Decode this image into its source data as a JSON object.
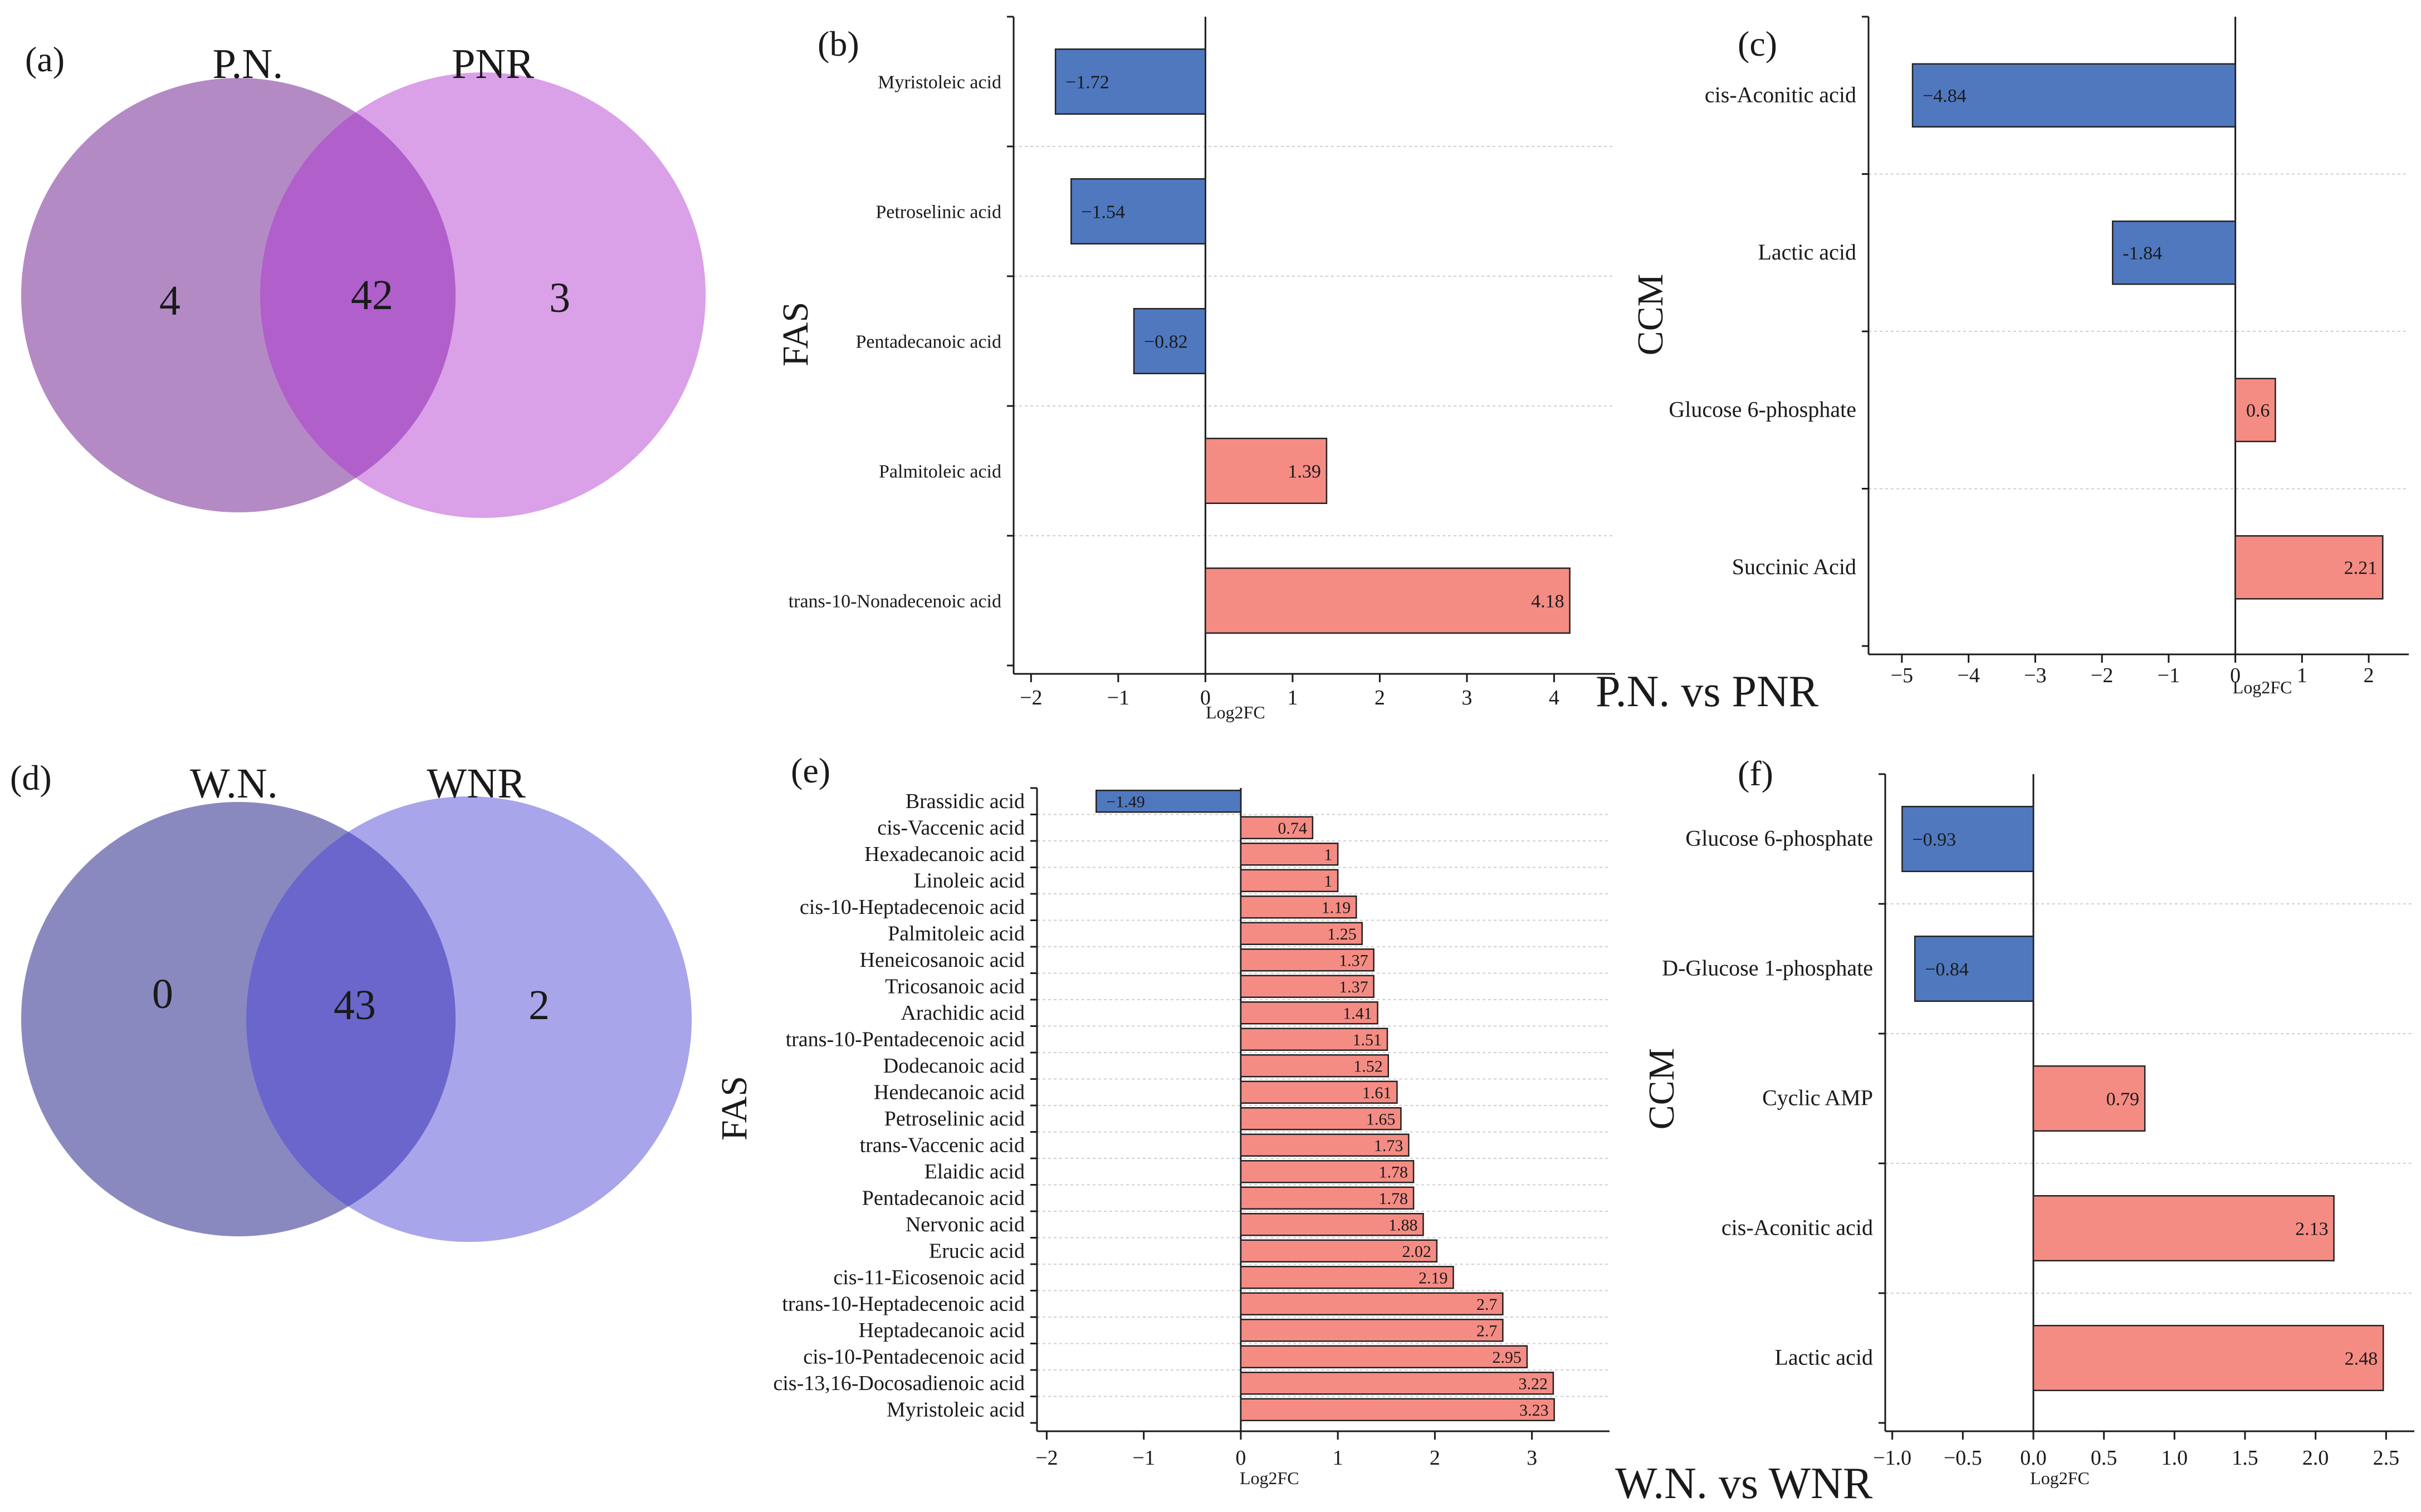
{
  "venns": [
    {
      "id": "a",
      "panel_label": "(a)",
      "left_title": "P.N.",
      "right_title": "PNR",
      "left_only": "4",
      "overlap": "42",
      "right_only": "3",
      "left_color": "#b388c4",
      "right_color": "#d99ee8",
      "overlap_color": "#b05fcb"
    },
    {
      "id": "d",
      "panel_label": "(d)",
      "left_title": "W.N.",
      "right_title": "WNR",
      "left_only": "0",
      "overlap": "43",
      "right_only": "2",
      "left_color": "#8a89bf",
      "right_color": "#a8a5ea",
      "overlap_color": "#6b66cc"
    }
  ],
  "comparisons": {
    "top": "P.N. vs PNR",
    "bottom": "W.N. vs WNR"
  },
  "colors": {
    "negative": "#4f78bf",
    "positive": "#f58c84",
    "axis": "#1a1a1a",
    "grid": "#cfcfcf"
  },
  "chart_data": [
    {
      "id": "b",
      "panel_label": "(b)",
      "type": "bar",
      "orientation": "horizontal",
      "group_label": "FAS",
      "xlabel": "Log2FC",
      "xlim": [
        -2.2,
        4.7
      ],
      "xticks": [
        -2,
        -1,
        0,
        1,
        2,
        3,
        4
      ],
      "xtick_labels": [
        "−2",
        "−1",
        "0",
        "1",
        "2",
        "3",
        "4"
      ],
      "grid": "horizontal dashed",
      "categories": [
        "Myristoleic acid",
        "Petroselinic acid",
        "Pentadecanoic acid",
        "Palmitoleic acid",
        "trans-10-Nonadecenoic acid"
      ],
      "values": [
        -1.72,
        -1.54,
        -0.82,
        1.39,
        4.18
      ],
      "data_labels": [
        "−1.72",
        "−1.54",
        "−0.82",
        "1.39",
        "4.18"
      ]
    },
    {
      "id": "c",
      "panel_label": "(c)",
      "type": "bar",
      "orientation": "horizontal",
      "group_label": "CCM",
      "xlabel": "Log2FC",
      "xlim": [
        -5.5,
        2.6
      ],
      "xticks": [
        -5,
        -4,
        -3,
        -2,
        -1,
        0,
        1,
        2
      ],
      "xtick_labels": [
        "−5",
        "−4",
        "−3",
        "−2",
        "−1",
        "0",
        "1",
        "2"
      ],
      "grid": "horizontal dashed",
      "categories": [
        "cis-Aconitic acid",
        "Lactic acid",
        "Glucose 6-phosphate",
        "Succinic Acid"
      ],
      "values": [
        -4.84,
        -1.84,
        0.6,
        2.21
      ],
      "data_labels": [
        "−4.84",
        "-1.84",
        "0.6",
        "2.21"
      ]
    },
    {
      "id": "e",
      "panel_label": "(e)",
      "type": "bar",
      "orientation": "horizontal",
      "group_label": "FAS",
      "xlabel": "Log2FC",
      "xlim": [
        -2.1,
        3.8
      ],
      "xticks": [
        -2,
        -1,
        0,
        1,
        2,
        3
      ],
      "xtick_labels": [
        "−2",
        "−1",
        "0",
        "1",
        "2",
        "3"
      ],
      "grid": "horizontal dashed",
      "categories": [
        "Brassidic acid",
        "cis-Vaccenic acid",
        "Hexadecanoic acid",
        "Linoleic acid",
        "cis-10-Heptadecenoic acid",
        "Palmitoleic acid",
        "Heneicosanoic acid",
        "Tricosanoic acid",
        "Arachidic acid",
        "trans-10-Pentadecenoic acid",
        "Dodecanoic acid",
        "Hendecanoic acid",
        "Petroselinic acid",
        "trans-Vaccenic acid",
        "Elaidic acid",
        "Pentadecanoic acid",
        "Nervonic acid",
        "Erucic acid",
        "cis-11-Eicosenoic acid",
        "trans-10-Heptadecenoic acid",
        "Heptadecanoic acid",
        "cis-10-Pentadecenoic acid",
        "cis-13,16-Docosadienoic acid",
        "Myristoleic acid"
      ],
      "values": [
        -1.49,
        0.74,
        1,
        1,
        1.19,
        1.25,
        1.37,
        1.37,
        1.41,
        1.51,
        1.52,
        1.61,
        1.65,
        1.73,
        1.78,
        1.78,
        1.88,
        2.02,
        2.19,
        2.7,
        2.7,
        2.95,
        3.22,
        3.23
      ],
      "data_labels": [
        "−1.49",
        "0.74",
        "1",
        "1",
        "1.19",
        "1.25",
        "1.37",
        "1.37",
        "1.41",
        "1.51",
        "1.52",
        "1.61",
        "1.65",
        "1.73",
        "1.78",
        "1.78",
        "1.88",
        "2.02",
        "2.19",
        "2.7",
        "2.7",
        "2.95",
        "3.22",
        "3.23"
      ]
    },
    {
      "id": "f",
      "panel_label": "(f)",
      "type": "bar",
      "orientation": "horizontal",
      "group_label": "CCM",
      "xlabel": "Log2FC",
      "xlim": [
        -1.05,
        2.7
      ],
      "xticks": [
        -1.0,
        -0.5,
        0.0,
        0.5,
        1.0,
        1.5,
        2.0,
        2.5
      ],
      "xtick_labels": [
        "−1.0",
        "−0.5",
        "0.0",
        "0.5",
        "1.0",
        "1.5",
        "2.0",
        "2.5"
      ],
      "grid": "horizontal dashed",
      "categories": [
        "Glucose 6-phosphate",
        "D-Glucose 1-phosphate",
        "Cyclic AMP",
        "cis-Aconitic acid",
        "Lactic acid"
      ],
      "values": [
        -0.93,
        -0.84,
        0.79,
        2.13,
        2.48
      ],
      "data_labels": [
        "−0.93",
        "−0.84",
        "0.79",
        "2.13",
        "2.48"
      ]
    }
  ]
}
